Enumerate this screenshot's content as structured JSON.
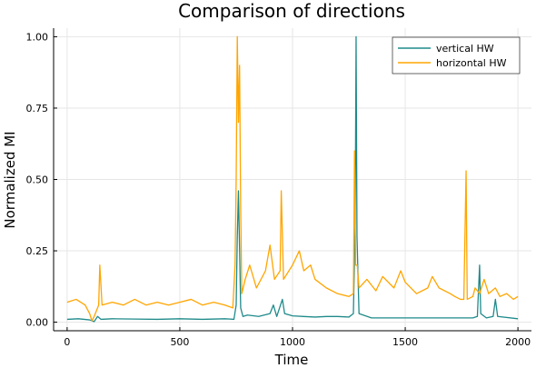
{
  "chart_data": {
    "type": "line",
    "title": "Comparison of directions",
    "xlabel": "Time",
    "ylabel": "Normalized MI",
    "xlim": [
      -60,
      2060
    ],
    "ylim": [
      -0.03,
      1.03
    ],
    "xticks": [
      0,
      500,
      1000,
      1500,
      2000
    ],
    "xtick_labels": [
      "0",
      "500",
      "1000",
      "1500",
      "2000"
    ],
    "yticks": [
      0,
      0.25,
      0.5,
      0.75,
      1.0
    ],
    "ytick_labels": [
      "0.00",
      "0.25",
      "0.50",
      "0.75",
      "1.00"
    ],
    "grid": true,
    "legend_position": "top-right",
    "series": [
      {
        "name": "vertical HW",
        "color": "#1f8a8a",
        "points": [
          [
            0,
            0.01
          ],
          [
            50,
            0.012
          ],
          [
            100,
            0.008
          ],
          [
            120,
            0.002
          ],
          [
            135,
            0.02
          ],
          [
            150,
            0.01
          ],
          [
            200,
            0.012
          ],
          [
            300,
            0.011
          ],
          [
            400,
            0.01
          ],
          [
            500,
            0.012
          ],
          [
            600,
            0.01
          ],
          [
            700,
            0.012
          ],
          [
            740,
            0.01
          ],
          [
            750,
            0.06
          ],
          [
            755,
            0.3
          ],
          [
            760,
            0.46
          ],
          [
            765,
            0.26
          ],
          [
            770,
            0.05
          ],
          [
            780,
            0.02
          ],
          [
            800,
            0.025
          ],
          [
            850,
            0.02
          ],
          [
            900,
            0.03
          ],
          [
            915,
            0.06
          ],
          [
            930,
            0.02
          ],
          [
            955,
            0.08
          ],
          [
            965,
            0.03
          ],
          [
            1000,
            0.022
          ],
          [
            1050,
            0.02
          ],
          [
            1100,
            0.018
          ],
          [
            1150,
            0.02
          ],
          [
            1200,
            0.02
          ],
          [
            1250,
            0.018
          ],
          [
            1270,
            0.03
          ],
          [
            1278,
            0.35
          ],
          [
            1282,
            1.0
          ],
          [
            1286,
            0.3
          ],
          [
            1295,
            0.03
          ],
          [
            1350,
            0.015
          ],
          [
            1400,
            0.015
          ],
          [
            1500,
            0.015
          ],
          [
            1600,
            0.015
          ],
          [
            1700,
            0.015
          ],
          [
            1800,
            0.015
          ],
          [
            1820,
            0.02
          ],
          [
            1830,
            0.2
          ],
          [
            1835,
            0.03
          ],
          [
            1860,
            0.015
          ],
          [
            1890,
            0.02
          ],
          [
            1900,
            0.08
          ],
          [
            1910,
            0.02
          ],
          [
            2000,
            0.012
          ]
        ]
      },
      {
        "name": "horizontal HW",
        "color": "#ffa500",
        "points": [
          [
            0,
            0.07
          ],
          [
            40,
            0.08
          ],
          [
            80,
            0.06
          ],
          [
            100,
            0.03
          ],
          [
            110,
            0.005
          ],
          [
            120,
            0.02
          ],
          [
            140,
            0.06
          ],
          [
            145,
            0.2
          ],
          [
            155,
            0.06
          ],
          [
            200,
            0.07
          ],
          [
            250,
            0.06
          ],
          [
            300,
            0.08
          ],
          [
            350,
            0.06
          ],
          [
            400,
            0.07
          ],
          [
            450,
            0.06
          ],
          [
            500,
            0.07
          ],
          [
            550,
            0.08
          ],
          [
            600,
            0.06
          ],
          [
            650,
            0.07
          ],
          [
            700,
            0.06
          ],
          [
            735,
            0.05
          ],
          [
            745,
            0.2
          ],
          [
            750,
            0.5
          ],
          [
            755,
            1.0
          ],
          [
            760,
            0.7
          ],
          [
            765,
            0.9
          ],
          [
            770,
            0.4
          ],
          [
            775,
            0.1
          ],
          [
            790,
            0.15
          ],
          [
            810,
            0.2
          ],
          [
            840,
            0.12
          ],
          [
            880,
            0.18
          ],
          [
            900,
            0.27
          ],
          [
            920,
            0.15
          ],
          [
            945,
            0.18
          ],
          [
            950,
            0.46
          ],
          [
            960,
            0.15
          ],
          [
            1000,
            0.2
          ],
          [
            1030,
            0.25
          ],
          [
            1050,
            0.18
          ],
          [
            1080,
            0.2
          ],
          [
            1100,
            0.15
          ],
          [
            1150,
            0.12
          ],
          [
            1200,
            0.1
          ],
          [
            1250,
            0.09
          ],
          [
            1270,
            0.1
          ],
          [
            1275,
            0.6
          ],
          [
            1280,
            0.2
          ],
          [
            1287,
            0.2
          ],
          [
            1295,
            0.12
          ],
          [
            1330,
            0.15
          ],
          [
            1370,
            0.11
          ],
          [
            1400,
            0.16
          ],
          [
            1450,
            0.12
          ],
          [
            1480,
            0.18
          ],
          [
            1500,
            0.14
          ],
          [
            1550,
            0.1
          ],
          [
            1600,
            0.12
          ],
          [
            1620,
            0.16
          ],
          [
            1650,
            0.12
          ],
          [
            1700,
            0.1
          ],
          [
            1720,
            0.09
          ],
          [
            1745,
            0.08
          ],
          [
            1760,
            0.08
          ],
          [
            1770,
            0.53
          ],
          [
            1775,
            0.08
          ],
          [
            1800,
            0.09
          ],
          [
            1810,
            0.12
          ],
          [
            1830,
            0.1
          ],
          [
            1850,
            0.15
          ],
          [
            1870,
            0.1
          ],
          [
            1900,
            0.12
          ],
          [
            1920,
            0.09
          ],
          [
            1950,
            0.1
          ],
          [
            1980,
            0.08
          ],
          [
            2000,
            0.09
          ]
        ]
      }
    ]
  }
}
